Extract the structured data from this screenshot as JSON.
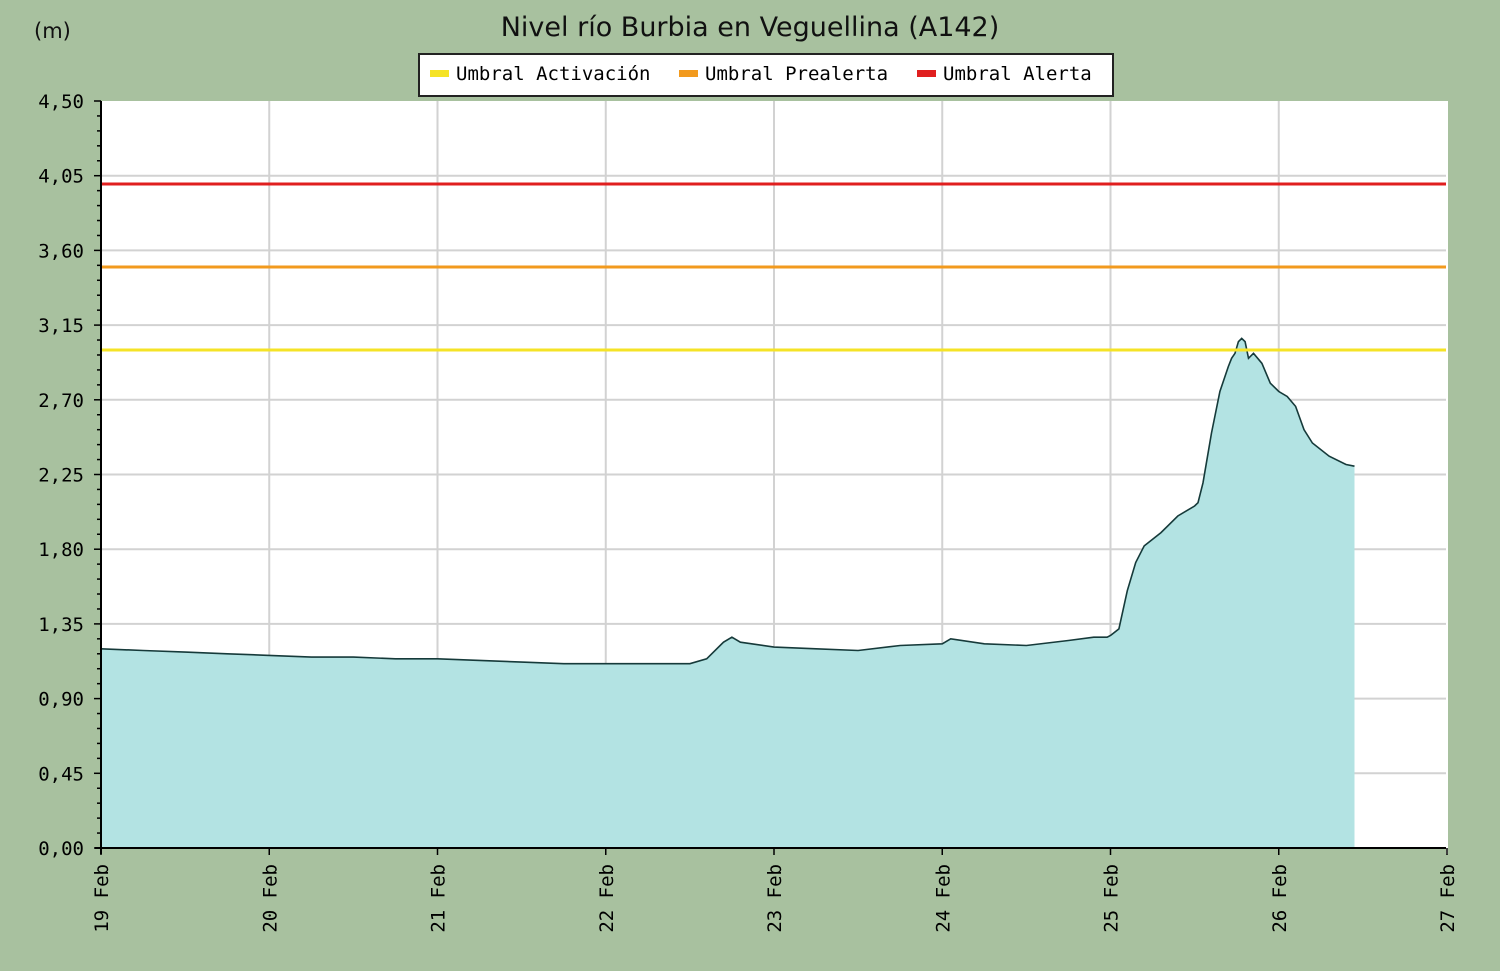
{
  "chart_data": {
    "type": "area",
    "title": "Nivel río Burbia en Veguellina  (A142)",
    "ylabel": "(m)",
    "xlabel": "",
    "ylim": [
      0,
      4.5
    ],
    "xlim": [
      0,
      8
    ],
    "grid": true,
    "legend_position": "top-center",
    "y_ticks": [
      "4,50",
      "4,05",
      "3,60",
      "3,15",
      "2,70",
      "2,25",
      "1,80",
      "1,35",
      "0,90",
      "0,45",
      "0,00"
    ],
    "x_ticks": [
      "19 Feb",
      "20 Feb",
      "21 Feb",
      "22 Feb",
      "23 Feb",
      "24 Feb",
      "25 Feb",
      "26 Feb",
      "27 Feb"
    ],
    "thresholds": [
      {
        "name": "Umbral Activación",
        "value": 3.0,
        "color": "#f5e326"
      },
      {
        "name": "Umbral Prealerta",
        "value": 3.5,
        "color": "#f29a1e"
      },
      {
        "name": "Umbral Alerta",
        "value": 4.0,
        "color": "#e01f1f"
      }
    ],
    "series": [
      {
        "fill": "#b3e3e3",
        "line": "#163a3a",
        "x": [
          0.0,
          0.25,
          0.5,
          0.75,
          1.0,
          1.25,
          1.5,
          1.75,
          2.0,
          2.25,
          2.5,
          2.75,
          3.0,
          3.25,
          3.5,
          3.6,
          3.7,
          3.75,
          3.8,
          4.0,
          4.25,
          4.5,
          4.75,
          5.0,
          5.05,
          5.25,
          5.5,
          5.75,
          5.9,
          5.98,
          6.0,
          6.05,
          6.1,
          6.15,
          6.2,
          6.3,
          6.4,
          6.5,
          6.52,
          6.55,
          6.6,
          6.65,
          6.7,
          6.72,
          6.74,
          6.76,
          6.78,
          6.8,
          6.82,
          6.85,
          6.9,
          6.95,
          7.0,
          7.05,
          7.1,
          7.15,
          7.2,
          7.3,
          7.4,
          7.45
        ],
        "y": [
          1.2,
          1.19,
          1.18,
          1.17,
          1.16,
          1.15,
          1.15,
          1.14,
          1.14,
          1.13,
          1.12,
          1.11,
          1.11,
          1.11,
          1.11,
          1.14,
          1.24,
          1.27,
          1.24,
          1.21,
          1.2,
          1.19,
          1.22,
          1.23,
          1.26,
          1.23,
          1.22,
          1.25,
          1.27,
          1.27,
          1.28,
          1.32,
          1.55,
          1.72,
          1.82,
          1.9,
          2.0,
          2.06,
          2.08,
          2.2,
          2.5,
          2.75,
          2.9,
          2.95,
          2.98,
          3.05,
          3.07,
          3.05,
          2.95,
          2.98,
          2.92,
          2.8,
          2.75,
          2.72,
          2.66,
          2.52,
          2.44,
          2.36,
          2.31,
          2.3
        ]
      }
    ]
  }
}
